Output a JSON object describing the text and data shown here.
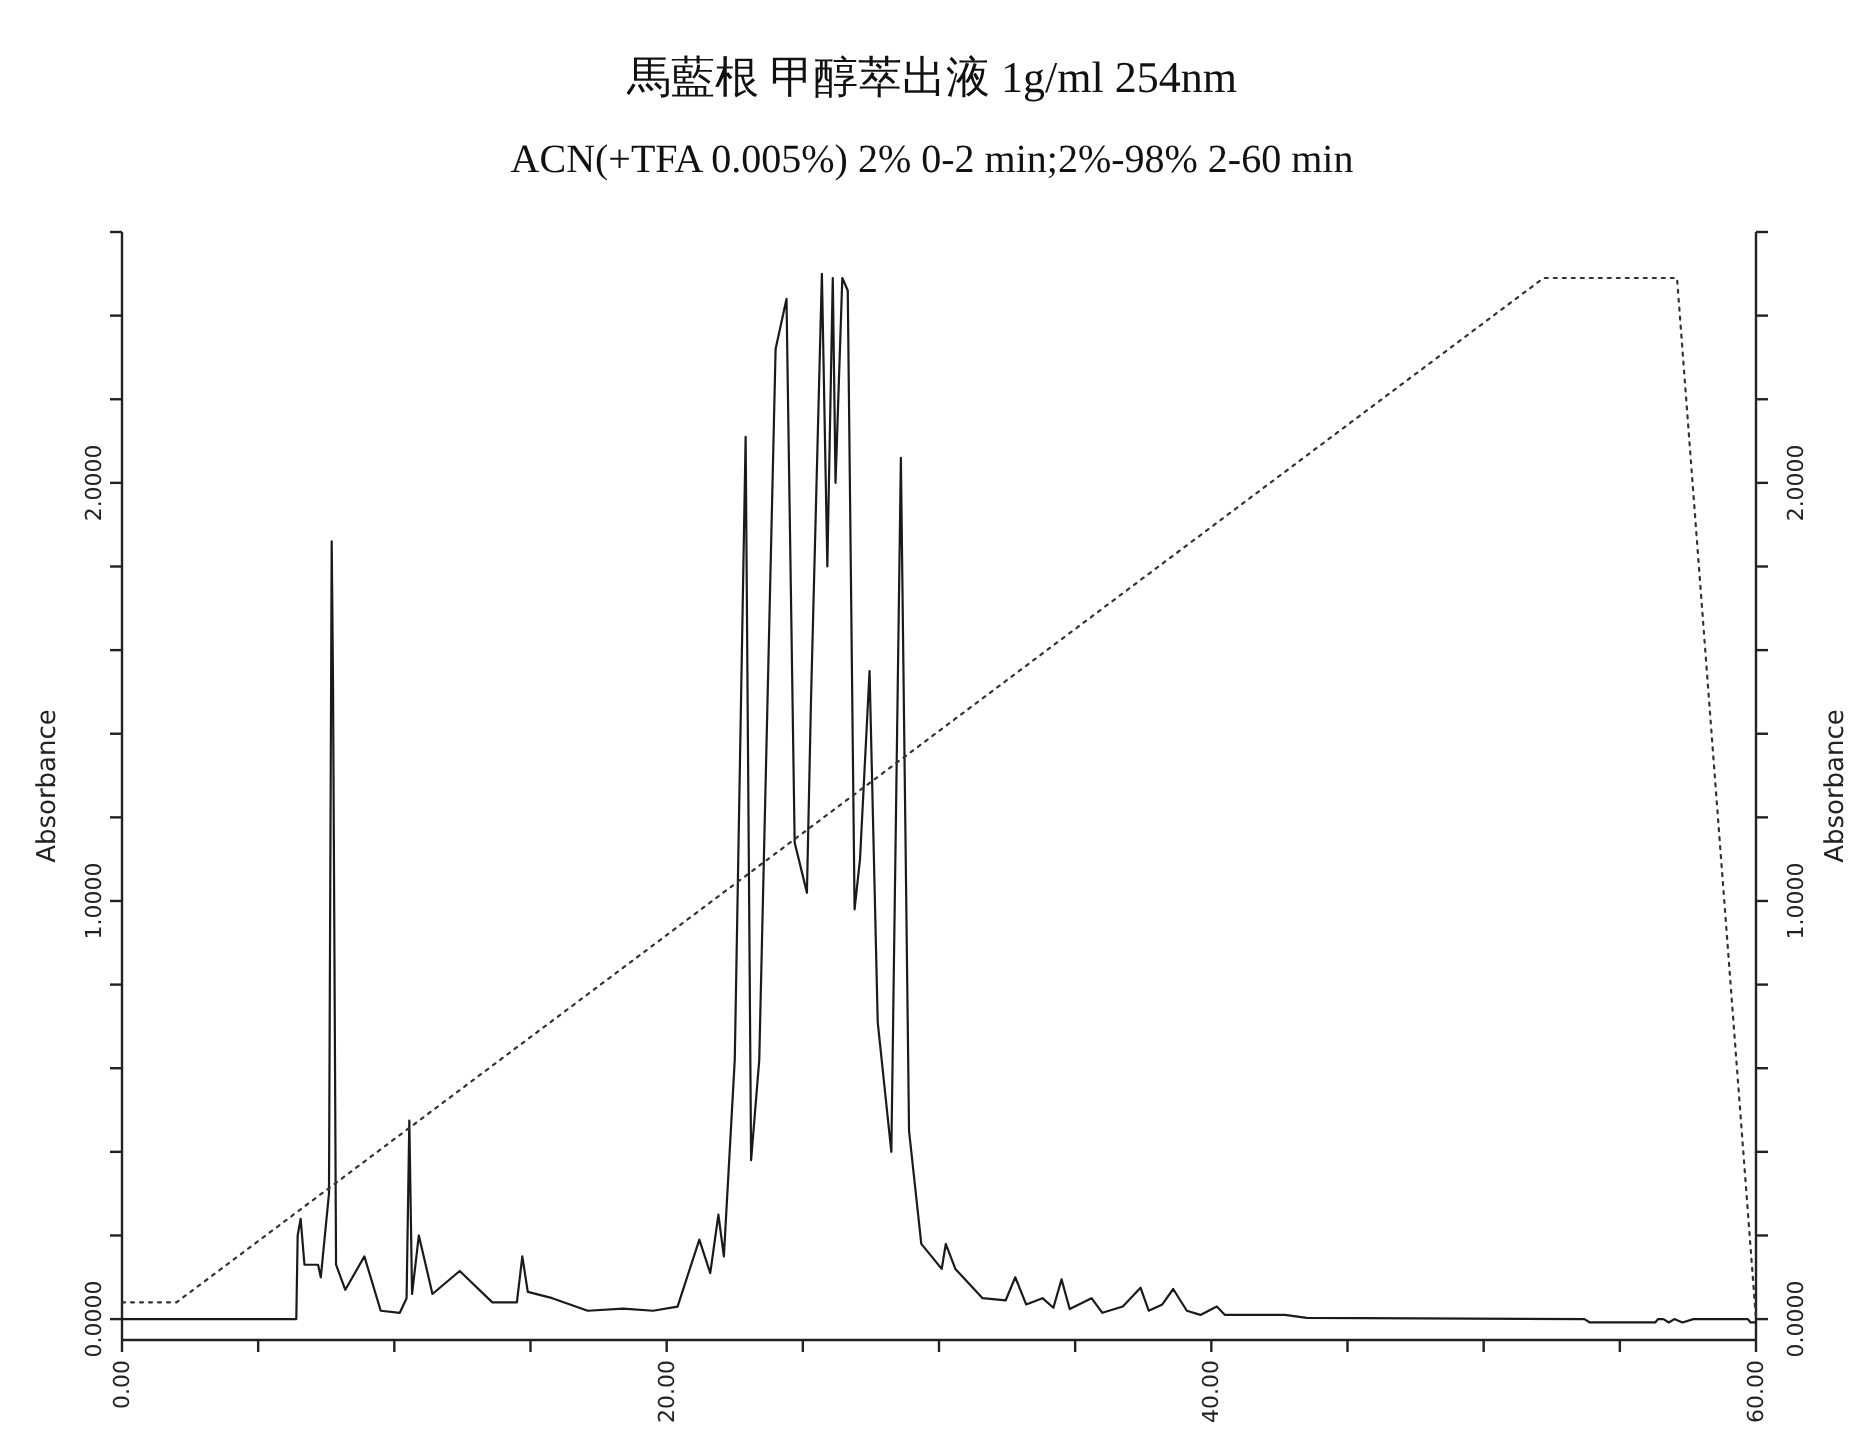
{
  "chart_data": {
    "type": "line",
    "title": "馬藍根 甲醇萃出液 1g/ml 254nm",
    "subtitle": "ACN(+TFA 0.005%) 2% 0-2 min;2%-98% 2-60 min",
    "ylabel": "Absorbance",
    "y2label": "Absorbance",
    "xlim": [
      0,
      60
    ],
    "xticks": [
      {
        "value": 0,
        "label": "0.00"
      },
      {
        "value": 5,
        "label": null
      },
      {
        "value": 10,
        "label": null
      },
      {
        "value": 15,
        "label": null
      },
      {
        "value": 20,
        "label": "20.00"
      },
      {
        "value": 25,
        "label": null
      },
      {
        "value": 30,
        "label": null
      },
      {
        "value": 35,
        "label": null
      },
      {
        "value": 40,
        "label": "40.00"
      },
      {
        "value": 45,
        "label": null
      },
      {
        "value": 50,
        "label": null
      },
      {
        "value": 55,
        "label": null
      },
      {
        "value": 60,
        "label": "60.00"
      }
    ],
    "ylim": [
      -0.05,
      2.6
    ],
    "yticks": [
      {
        "value": 0,
        "label": "0.0000"
      },
      {
        "value": 0.2,
        "label": null
      },
      {
        "value": 0.4,
        "label": null
      },
      {
        "value": 0.6,
        "label": null
      },
      {
        "value": 0.8,
        "label": null
      },
      {
        "value": 1,
        "label": "1.0000"
      },
      {
        "value": 1.2,
        "label": null
      },
      {
        "value": 1.4,
        "label": null
      },
      {
        "value": 1.6,
        "label": null
      },
      {
        "value": 1.8,
        "label": null
      },
      {
        "value": 2,
        "label": "2.0000"
      },
      {
        "value": 2.2,
        "label": null
      },
      {
        "value": 2.4,
        "label": null
      },
      {
        "value": 2.6,
        "label": null
      }
    ],
    "y2lim": [
      -0.05,
      2.6
    ],
    "y2ticks": [
      {
        "value": 0,
        "label": "0.0000"
      },
      {
        "value": 0.2,
        "label": null
      },
      {
        "value": 0.4,
        "label": null
      },
      {
        "value": 0.6,
        "label": null
      },
      {
        "value": 0.8,
        "label": null
      },
      {
        "value": 1,
        "label": "1.0000"
      },
      {
        "value": 1.2,
        "label": null
      },
      {
        "value": 1.4,
        "label": null
      },
      {
        "value": 1.6,
        "label": null
      },
      {
        "value": 1.8,
        "label": null
      },
      {
        "value": 2,
        "label": "2.0000"
      },
      {
        "value": 2.2,
        "label": null
      },
      {
        "value": 2.4,
        "label": null
      },
      {
        "value": 2.6,
        "label": null
      }
    ],
    "series": [
      {
        "color": "#1a1a1a",
        "line_style": "solid",
        "x": [
          0,
          6.4,
          6.45,
          6.56,
          6.7,
          7.2,
          7.3,
          7.6,
          7.7,
          7.75,
          7.86,
          8.2,
          8.9,
          9.5,
          10.2,
          10.45,
          10.55,
          10.65,
          10.9,
          11.4,
          12.4,
          13.6,
          14.5,
          14.7,
          14.9,
          15.8,
          17.1,
          18.4,
          19.5,
          20.4,
          21.2,
          21.6,
          21.9,
          22.1,
          22.5,
          22.9,
          23.1,
          23.4,
          24.0,
          24.4,
          24.7,
          25.15,
          25.3,
          25.7,
          25.9,
          26.1,
          26.2,
          26.45,
          26.65,
          26.9,
          27.1,
          27.45,
          27.75,
          28.25,
          28.6,
          28.9,
          29.35,
          30.1,
          30.25,
          30.6,
          31.6,
          32.45,
          32.8,
          33.2,
          33.8,
          34.2,
          34.5,
          34.8,
          35.6,
          36.0,
          36.75,
          37.4,
          37.7,
          38.2,
          38.6,
          39.1,
          39.6,
          40.2,
          40.5,
          42.7,
          43.5,
          53.7,
          53.9,
          56.3,
          56.4,
          56.6,
          56.8,
          57.0,
          57.3,
          57.7,
          59.7,
          59.8,
          60
        ],
        "values": [
          0,
          0,
          0.2,
          0.24,
          0.13,
          0.13,
          0.1,
          0.3,
          1.86,
          1.51,
          0.13,
          0.07,
          0.15,
          0.02,
          0.015,
          0.05,
          0.475,
          0.06,
          0.2,
          0.06,
          0.115,
          0.04,
          0.04,
          0.15,
          0.065,
          0.05,
          0.02,
          0.025,
          0.02,
          0.03,
          0.19,
          0.11,
          0.25,
          0.15,
          0.62,
          2.11,
          0.38,
          0.62,
          2.32,
          2.44,
          1.14,
          1.02,
          1.48,
          2.5,
          1.8,
          2.49,
          2.0,
          2.49,
          2.46,
          0.98,
          1.1,
          1.55,
          0.71,
          0.4,
          2.06,
          0.45,
          0.18,
          0.12,
          0.18,
          0.12,
          0.05,
          0.045,
          0.1,
          0.035,
          0.05,
          0.027,
          0.095,
          0.024,
          0.05,
          0.015,
          0.03,
          0.075,
          0.02,
          0.035,
          0.072,
          0.02,
          0.01,
          0.03,
          0.01,
          0.01,
          0.003,
          0,
          -0.008,
          -0.008,
          0,
          0,
          -0.008,
          0,
          -0.008,
          0,
          0,
          -0.008,
          -0.008
        ]
      },
      {
        "color": "#333333",
        "line_style": "dotted",
        "x": [
          0,
          2,
          52.2,
          57.1,
          60
        ],
        "values": [
          0.04,
          0.04,
          2.49,
          2.49,
          0
        ]
      }
    ]
  }
}
